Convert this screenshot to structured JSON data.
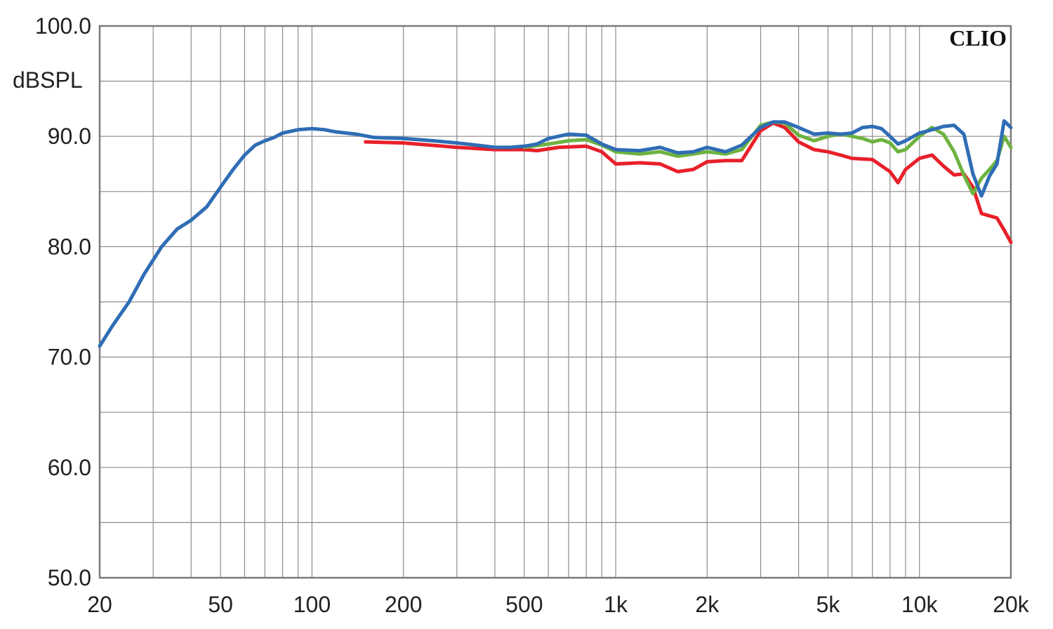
{
  "brand": "CLIO",
  "chart_data": {
    "type": "line",
    "xscale": "log",
    "xlim": [
      20,
      20000
    ],
    "ylim": [
      50,
      100
    ],
    "ylabel": "dBSPL",
    "xlabel": "",
    "grid": true,
    "x_ticks": [
      {
        "value": 20,
        "label": "20"
      },
      {
        "value": 50,
        "label": "50"
      },
      {
        "value": 100,
        "label": "100"
      },
      {
        "value": 200,
        "label": "200"
      },
      {
        "value": 500,
        "label": "500"
      },
      {
        "value": 1000,
        "label": "1k"
      },
      {
        "value": 2000,
        "label": "2k"
      },
      {
        "value": 5000,
        "label": "5k"
      },
      {
        "value": 10000,
        "label": "10k"
      },
      {
        "value": 20000,
        "label": "20k"
      }
    ],
    "y_ticks": [
      {
        "value": 100,
        "label": "100.0"
      },
      {
        "value": 90,
        "label": "90.0"
      },
      {
        "value": 80,
        "label": "80.0"
      },
      {
        "value": 70,
        "label": "70.0"
      },
      {
        "value": 60,
        "label": "60.0"
      },
      {
        "value": 50,
        "label": "50.0"
      }
    ],
    "series": [
      {
        "color": "#e8202a",
        "x": [
          150,
          200,
          300,
          400,
          500,
          550,
          650,
          800,
          900,
          1000,
          1200,
          1400,
          1600,
          1800,
          2000,
          2300,
          2600,
          3000,
          3300,
          3600,
          4000,
          4500,
          5000,
          5500,
          6000,
          7000,
          8000,
          8500,
          9000,
          10000,
          11000,
          12000,
          13000,
          14000,
          15000,
          16000,
          18000,
          19000,
          20000
        ],
        "y": [
          89.5,
          89.4,
          89.0,
          88.8,
          88.8,
          88.7,
          89.0,
          89.1,
          88.6,
          87.5,
          87.6,
          87.5,
          86.8,
          87.0,
          87.7,
          87.8,
          87.8,
          90.5,
          91.2,
          90.8,
          89.5,
          88.8,
          88.6,
          88.3,
          88.0,
          87.9,
          86.8,
          85.8,
          87.0,
          88.0,
          88.3,
          87.3,
          86.5,
          86.6,
          85.4,
          83.0,
          82.6,
          81.5,
          80.4
        ]
      },
      {
        "color": "#6db33f",
        "x": [
          500,
          600,
          700,
          800,
          900,
          1000,
          1200,
          1400,
          1600,
          1800,
          2000,
          2300,
          2600,
          3000,
          3300,
          3600,
          4000,
          4500,
          5000,
          5500,
          6000,
          6500,
          7000,
          7500,
          8000,
          8500,
          9000,
          10000,
          11000,
          12000,
          13000,
          14000,
          15000,
          16000,
          17000,
          18000,
          19000,
          20000
        ],
        "y": [
          89.0,
          89.3,
          89.6,
          89.7,
          89.2,
          88.6,
          88.4,
          88.6,
          88.2,
          88.4,
          88.6,
          88.4,
          88.8,
          91.0,
          91.3,
          91.2,
          90.1,
          89.6,
          90.0,
          90.2,
          90.0,
          89.8,
          89.5,
          89.7,
          89.4,
          88.6,
          88.8,
          90.0,
          90.8,
          90.2,
          88.6,
          86.5,
          84.8,
          86.2,
          87.0,
          87.8,
          90.0,
          89.0
        ]
      },
      {
        "color": "#2f6db5",
        "x": [
          20,
          22,
          25,
          28,
          32,
          36,
          40,
          45,
          50,
          55,
          60,
          65,
          70,
          75,
          80,
          90,
          100,
          110,
          120,
          140,
          160,
          200,
          250,
          300,
          350,
          400,
          450,
          500,
          550,
          600,
          700,
          800,
          900,
          1000,
          1200,
          1400,
          1600,
          1800,
          2000,
          2300,
          2600,
          3000,
          3300,
          3600,
          4000,
          4500,
          5000,
          5500,
          6000,
          6500,
          7000,
          7500,
          8000,
          8500,
          9000,
          10000,
          11000,
          12000,
          13000,
          14000,
          15000,
          16000,
          17000,
          18000,
          19000,
          20000
        ],
        "y": [
          71.0,
          72.8,
          75.0,
          77.5,
          80.0,
          81.6,
          82.4,
          83.6,
          85.4,
          87.0,
          88.3,
          89.2,
          89.6,
          89.9,
          90.3,
          90.6,
          90.7,
          90.6,
          90.4,
          90.2,
          89.9,
          89.8,
          89.6,
          89.4,
          89.2,
          89.0,
          89.0,
          89.1,
          89.3,
          89.8,
          90.2,
          90.1,
          89.3,
          88.8,
          88.7,
          89.0,
          88.5,
          88.6,
          89.0,
          88.6,
          89.2,
          90.8,
          91.3,
          91.3,
          90.8,
          90.2,
          90.3,
          90.2,
          90.3,
          90.8,
          90.9,
          90.7,
          90.0,
          89.3,
          89.6,
          90.3,
          90.6,
          90.9,
          91.0,
          90.2,
          86.6,
          84.6,
          86.4,
          87.5,
          91.4,
          90.8
        ]
      }
    ]
  }
}
